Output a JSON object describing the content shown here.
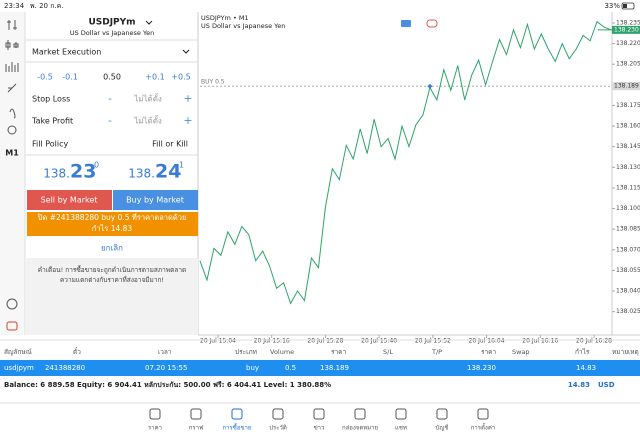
{
  "status_bar": {
    "time": "23:34",
    "date": "พ. 20 ก.ค.",
    "battery": "33%"
  },
  "sidebar": {
    "timeframe": "M1"
  },
  "order_panel": {
    "symbol": "USDJPYm",
    "description": "US Dollar vs Japanese Yen",
    "execution": "Market Execution",
    "volume_steps": [
      "-0.5",
      "-0.1",
      "0.50",
      "+0.1",
      "+0.5"
    ],
    "stop_loss": {
      "label": "Stop Loss",
      "minus": "-",
      "value": "ไม่ได้ตั้ง",
      "plus": "+"
    },
    "take_profit": {
      "label": "Take Profit",
      "minus": "-",
      "value": "ไม่ได้ตั้ง",
      "plus": "+"
    },
    "fill_policy": {
      "label": "Fill Policy",
      "value": "Fill or Kill"
    },
    "bid": {
      "prefix": "138.",
      "big": "23",
      "sup": "0"
    },
    "ask": {
      "prefix": "138.",
      "big": "24",
      "sup": "1"
    },
    "sell_button": "Sell by Market",
    "buy_button": "Buy by Market",
    "notice": [
      "ปิด #241388280 buy 0.5 ที่ราคาตลาดด้วย",
      "กำไร 14.83"
    ],
    "cancel": "ยกเลิก",
    "warning": [
      "คำเตือน! การซื้อขายจะถูกดำเนินการตามสภาพตลาด",
      "ความแตกต่างกับราคาที่ส่งอาจมีมาก!"
    ]
  },
  "chart_data": {
    "type": "line",
    "title": "USDJPYm • M1",
    "subtitle": "US Dollar vs Japanese Yen",
    "color": "#2ea36b",
    "values": [
      138.062,
      138.048,
      138.071,
      138.066,
      138.083,
      138.074,
      138.087,
      138.081,
      138.062,
      138.069,
      138.058,
      138.042,
      138.046,
      138.031,
      138.04,
      138.033,
      138.064,
      138.057,
      138.101,
      138.129,
      138.121,
      138.146,
      138.136,
      138.158,
      138.14,
      138.165,
      138.145,
      138.151,
      138.136,
      138.16,
      138.145,
      138.161,
      138.168,
      138.188,
      138.179,
      138.201,
      138.186,
      138.204,
      138.179,
      138.197,
      138.208,
      138.19,
      138.207,
      138.223,
      138.212,
      138.23,
      138.217,
      138.234,
      138.216,
      138.227,
      138.216,
      138.207,
      138.22,
      138.209,
      138.216,
      138.226,
      138.222,
      138.236,
      138.232,
      138.23
    ],
    "x_labels": [
      "20 Jul 15:04",
      "20 Jul 15:16",
      "20 Jul 15:28",
      "20 Jul 15:40",
      "20 Jul 15:52",
      "20 Jul 16:04",
      "20 Jul 16:16",
      "20 Jul 16:28"
    ],
    "ylim": [
      138.008,
      138.243
    ],
    "yticks": [
      138.235,
      {
        "value": 138.22,
        "label": "138.220"
      },
      138.205,
      {
        "value": 138.19,
        "label": "138.190"
      },
      138.175,
      {
        "value": 138.16,
        "label": "138.160"
      },
      138.145,
      {
        "value": 138.13,
        "label": "138.130"
      },
      138.115,
      {
        "value": 138.1,
        "label": "138.100"
      },
      138.085,
      {
        "value": 138.07,
        "label": "138.070"
      },
      138.055,
      {
        "value": 138.04,
        "label": "138.040"
      },
      138.025
    ],
    "current_price": {
      "value": 138.23,
      "label": "138.230"
    },
    "buy_line": {
      "label": "BUY 0.5",
      "value": 138.189
    }
  },
  "positions": {
    "headers": [
      "สัญลักษณ์",
      "ตั๋ว",
      "เวลา",
      "ประเภท",
      "Volume",
      "ราคา",
      "S/L",
      "T/P",
      "ราคา",
      "Swap",
      "กำไร",
      "หมายเหตุ"
    ],
    "row": {
      "symbol": "usdjpym",
      "ticket": "241388280",
      "time": "07.20 15:55",
      "type": "buy",
      "volume": "0.5",
      "open_price": "138.189",
      "current_price": "138.230",
      "profit": "14.83"
    },
    "balance": "Balance: 6 889.58 Equity: 6 904.41 หลักประกัน: 500.00 ฟรี: 6 404.41 Level: 1 380.88%",
    "total_profit": "14.83",
    "currency": "USD"
  },
  "tabs": {
    "items": [
      "ราคา",
      "กราฟ",
      "การซื้อขาย",
      "ประวัติ",
      "ข่าว",
      "กล่องจดหมาย",
      "แชท",
      "บัญชี",
      "การตั้งค่า"
    ],
    "active": 2
  }
}
